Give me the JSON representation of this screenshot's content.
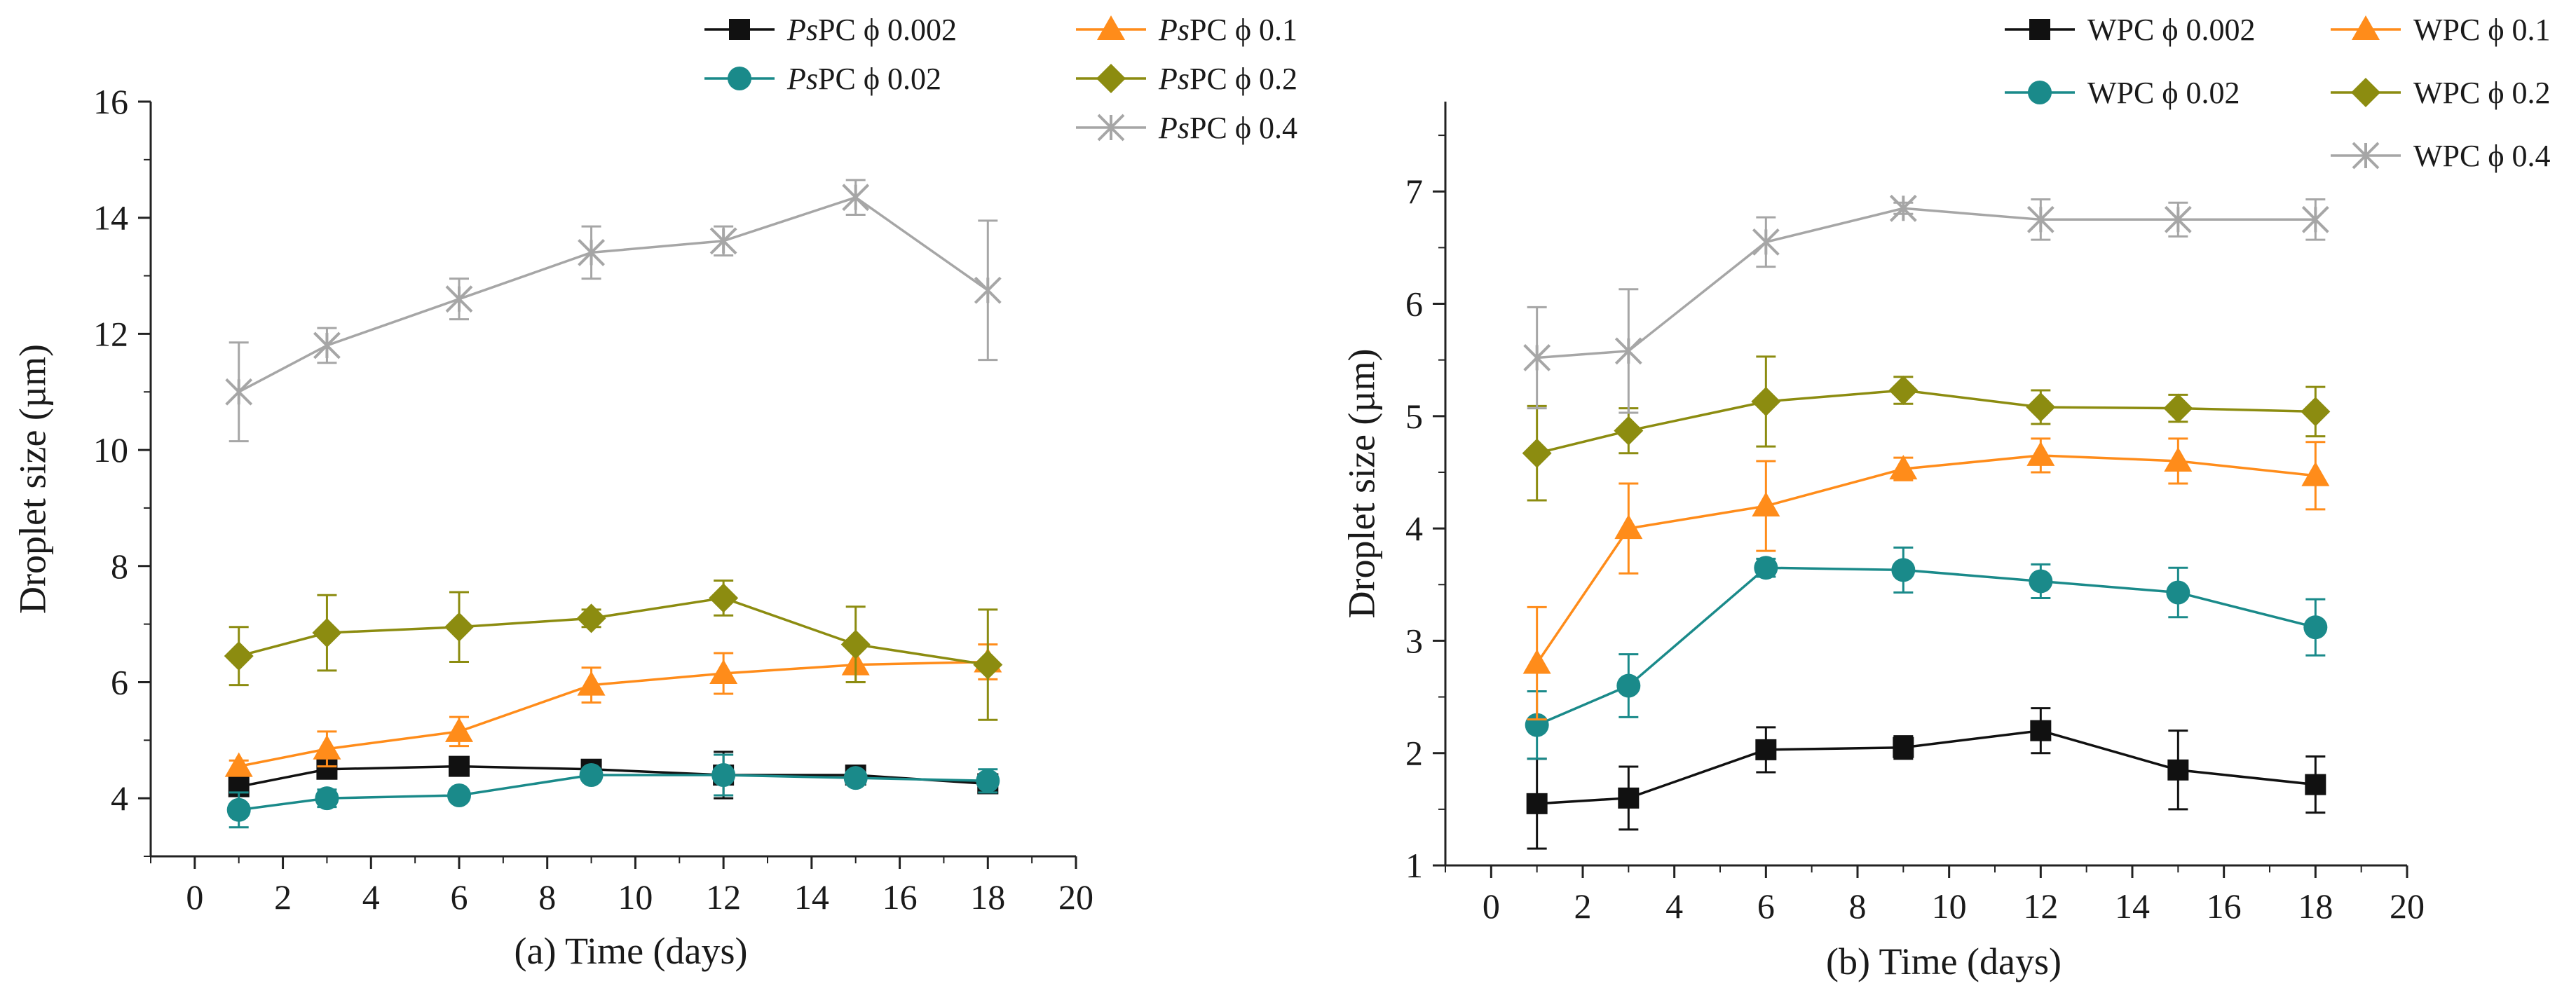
{
  "colors": {
    "black": "#111111",
    "teal": "#1a8a8a",
    "orange": "#ff8c1a",
    "olive": "#8c8c10",
    "gray": "#a6a6a6",
    "axis": "#222222"
  },
  "chart_data": [
    {
      "id": "a",
      "type": "line",
      "caption": "(a)  Time (days)",
      "xlabel": "Time (days)",
      "ylabel": "Droplet size (µm)",
      "xlim": [
        -1,
        20
      ],
      "ylim": [
        3,
        16
      ],
      "xticks": [
        0,
        2,
        4,
        6,
        8,
        10,
        12,
        14,
        16,
        18,
        20
      ],
      "yticks": [
        4,
        6,
        8,
        10,
        12,
        14,
        16
      ],
      "x": [
        1,
        3,
        6,
        9,
        12,
        15,
        18
      ],
      "series": [
        {
          "name": "PsPC ϕ 0.002",
          "prefix": "Ps",
          "suffix": "PC ϕ 0.002",
          "color": "black",
          "marker": "square",
          "values": [
            4.2,
            4.5,
            4.55,
            4.5,
            4.4,
            4.4,
            4.25
          ],
          "errors": [
            0.15,
            0.1,
            0.1,
            0.1,
            0.4,
            0.1,
            0.15
          ]
        },
        {
          "name": "PsPC ϕ 0.02",
          "prefix": "Ps",
          "suffix": "PC ϕ 0.02",
          "color": "teal",
          "marker": "circle",
          "values": [
            3.8,
            4.0,
            4.05,
            4.4,
            4.4,
            4.35,
            4.3
          ],
          "errors": [
            0.3,
            0.15,
            0.1,
            0.1,
            0.35,
            0.1,
            0.2
          ]
        },
        {
          "name": "PsPC ϕ 0.1",
          "prefix": "Ps",
          "suffix": "PC ϕ 0.1",
          "color": "orange",
          "marker": "triangle",
          "values": [
            4.55,
            4.85,
            5.15,
            5.95,
            6.15,
            6.3,
            6.35
          ],
          "errors": [
            0.1,
            0.3,
            0.25,
            0.3,
            0.35,
            0.3,
            0.3
          ]
        },
        {
          "name": "PsPC ϕ 0.2",
          "prefix": "Ps",
          "suffix": "PC ϕ 0.2",
          "color": "olive",
          "marker": "diamond",
          "values": [
            6.45,
            6.85,
            6.95,
            7.1,
            7.45,
            6.65,
            6.3
          ],
          "errors": [
            0.5,
            0.65,
            0.6,
            0.15,
            0.3,
            0.65,
            0.95
          ]
        },
        {
          "name": "PsPC ϕ 0.4",
          "prefix": "Ps",
          "suffix": "PC ϕ 0.4",
          "color": "gray",
          "marker": "star",
          "values": [
            11.0,
            11.8,
            12.6,
            13.4,
            13.6,
            14.35,
            12.75
          ],
          "errors": [
            0.85,
            0.3,
            0.35,
            0.45,
            0.25,
            0.3,
            1.2
          ]
        }
      ]
    },
    {
      "id": "b",
      "type": "line",
      "caption": "(b)  Time (days)",
      "xlabel": "Time (days)",
      "ylabel": "Droplet size (µm)",
      "xlim": [
        -1,
        20
      ],
      "ylim": [
        1,
        7.8
      ],
      "xticks": [
        0,
        2,
        4,
        6,
        8,
        10,
        12,
        14,
        16,
        18,
        20
      ],
      "yticks": [
        1,
        2,
        3,
        4,
        5,
        6,
        7
      ],
      "x": [
        1,
        3,
        6,
        9,
        12,
        15,
        18
      ],
      "series": [
        {
          "name": "WPC ϕ 0.002",
          "prefix": "",
          "suffix": "WPC ϕ 0.002",
          "color": "black",
          "marker": "square",
          "values": [
            1.55,
            1.6,
            2.03,
            2.05,
            2.2,
            1.85,
            1.72
          ],
          "errors": [
            0.4,
            0.28,
            0.2,
            0.1,
            0.2,
            0.35,
            0.25
          ]
        },
        {
          "name": "WPC ϕ 0.02",
          "prefix": "",
          "suffix": "WPC ϕ 0.02",
          "color": "teal",
          "marker": "circle",
          "values": [
            2.25,
            2.6,
            3.65,
            3.63,
            3.53,
            3.43,
            3.12
          ],
          "errors": [
            0.3,
            0.28,
            0.08,
            0.2,
            0.15,
            0.22,
            0.25
          ]
        },
        {
          "name": "WPC ϕ 0.1",
          "prefix": "",
          "suffix": "WPC ϕ 0.1",
          "color": "orange",
          "marker": "triangle",
          "values": [
            2.8,
            4.0,
            4.2,
            4.53,
            4.65,
            4.6,
            4.47
          ],
          "errors": [
            0.5,
            0.4,
            0.4,
            0.1,
            0.15,
            0.2,
            0.3
          ]
        },
        {
          "name": "WPC ϕ 0.2",
          "prefix": "",
          "suffix": "WPC ϕ 0.2",
          "color": "olive",
          "marker": "diamond",
          "values": [
            4.67,
            4.87,
            5.13,
            5.23,
            5.08,
            5.07,
            5.04
          ],
          "errors": [
            0.42,
            0.2,
            0.4,
            0.12,
            0.15,
            0.12,
            0.22
          ]
        },
        {
          "name": "WPC ϕ 0.4",
          "prefix": "",
          "suffix": "WPC ϕ 0.4",
          "color": "gray",
          "marker": "star",
          "values": [
            5.52,
            5.58,
            6.55,
            6.85,
            6.75,
            6.75,
            6.75
          ],
          "errors": [
            0.45,
            0.55,
            0.22,
            0.05,
            0.18,
            0.15,
            0.18
          ]
        }
      ]
    }
  ]
}
